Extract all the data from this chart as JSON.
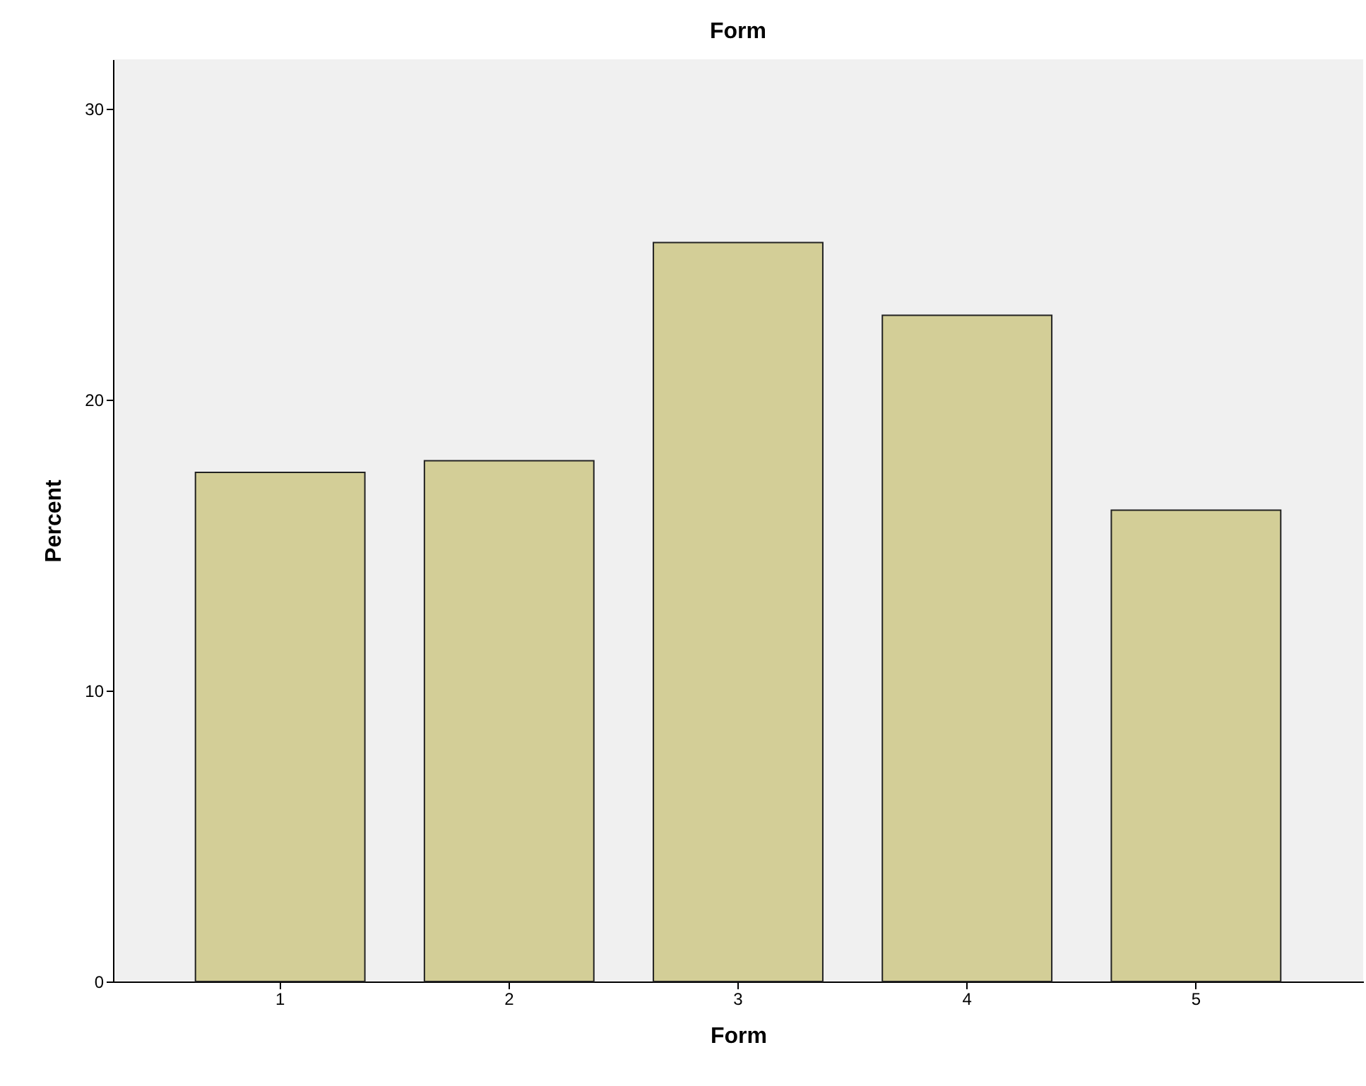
{
  "chart_data": {
    "type": "bar",
    "title": "Form",
    "xlabel": "Form",
    "ylabel": "Percent",
    "categories": [
      "1",
      "2",
      "3",
      "4",
      "5"
    ],
    "values": [
      17.5,
      17.9,
      25.4,
      22.9,
      16.2
    ],
    "color": "#d3ce97",
    "ylim": [
      0,
      31.7
    ],
    "yticks": [
      0,
      10,
      20,
      30
    ],
    "grid": false
  }
}
